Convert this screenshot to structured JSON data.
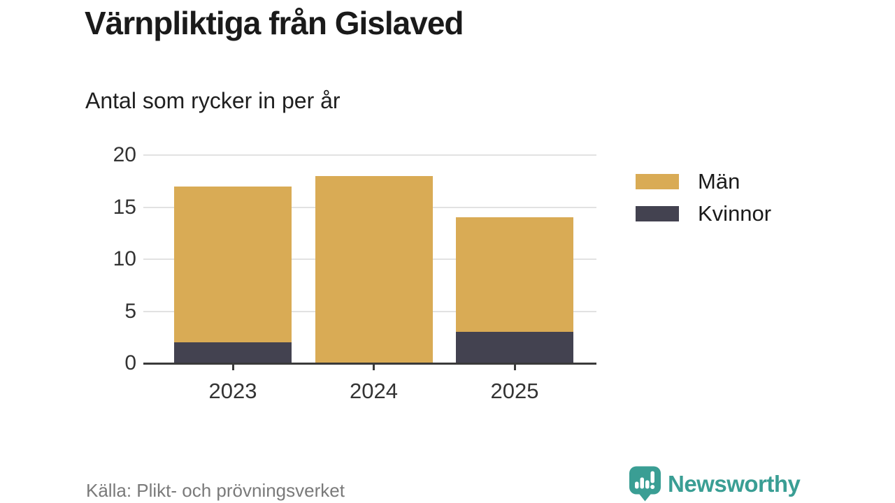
{
  "title": "Värnpliktiga från Gislaved",
  "subtitle": "Antal som rycker in per år",
  "source": "Källa: Plikt- och prövningsverket",
  "brand": {
    "name": "Newsworthy",
    "color": "#3A9E94"
  },
  "colors": {
    "men": "#D9AB55",
    "women": "#434250",
    "grid": "#E2E2E2",
    "axis": "#3A3A3A",
    "tick_labels": "#333333",
    "title_text": "#1A1A1A",
    "source_text": "#7A7A7A",
    "brand_teal": "#3A9E94"
  },
  "chart_data": {
    "type": "bar",
    "stacked": true,
    "title": "Värnpliktiga från Gislaved",
    "subtitle": "Antal som rycker in per år",
    "categories": [
      "2023",
      "2024",
      "2025"
    ],
    "series": [
      {
        "name": "Män",
        "color": "#D9AB55",
        "values": [
          15,
          18,
          11
        ]
      },
      {
        "name": "Kvinnor",
        "color": "#434250",
        "values": [
          2,
          0,
          3
        ]
      }
    ],
    "stack_order_bottom_to_top": [
      "Kvinnor",
      "Män"
    ],
    "totals": [
      17,
      18,
      14
    ],
    "xlabel": "",
    "ylabel": "",
    "ylim": [
      0,
      20
    ],
    "yticks": [
      0,
      5,
      10,
      15,
      20
    ],
    "grid": true,
    "legend_position": "right"
  }
}
